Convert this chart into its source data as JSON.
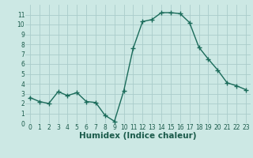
{
  "x": [
    0,
    1,
    2,
    3,
    4,
    5,
    6,
    7,
    8,
    9,
    10,
    11,
    12,
    13,
    14,
    15,
    16,
    17,
    18,
    19,
    20,
    21,
    22,
    23
  ],
  "y": [
    2.6,
    2.2,
    2.0,
    3.2,
    2.8,
    3.1,
    2.2,
    2.1,
    0.8,
    0.2,
    3.3,
    7.6,
    10.3,
    10.5,
    11.2,
    11.2,
    11.1,
    10.2,
    7.7,
    6.5,
    5.4,
    4.1,
    3.8,
    3.4
  ],
  "line_color": "#1a6b5a",
  "marker": "+",
  "marker_size": 4,
  "line_width": 1.0,
  "bg_color": "#cce8e4",
  "grid_color": "#aaccca",
  "xlabel": "Humidex (Indice chaleur)",
  "xlim": [
    -0.5,
    23.5
  ],
  "ylim": [
    0,
    12
  ],
  "yticks": [
    0,
    1,
    2,
    3,
    4,
    5,
    6,
    7,
    8,
    9,
    10,
    11
  ],
  "xticks": [
    0,
    1,
    2,
    3,
    4,
    5,
    6,
    7,
    8,
    9,
    10,
    11,
    12,
    13,
    14,
    15,
    16,
    17,
    18,
    19,
    20,
    21,
    22,
    23
  ],
  "font_color": "#1a5a4a",
  "tick_font_size": 5.5,
  "label_font_size": 7.5
}
